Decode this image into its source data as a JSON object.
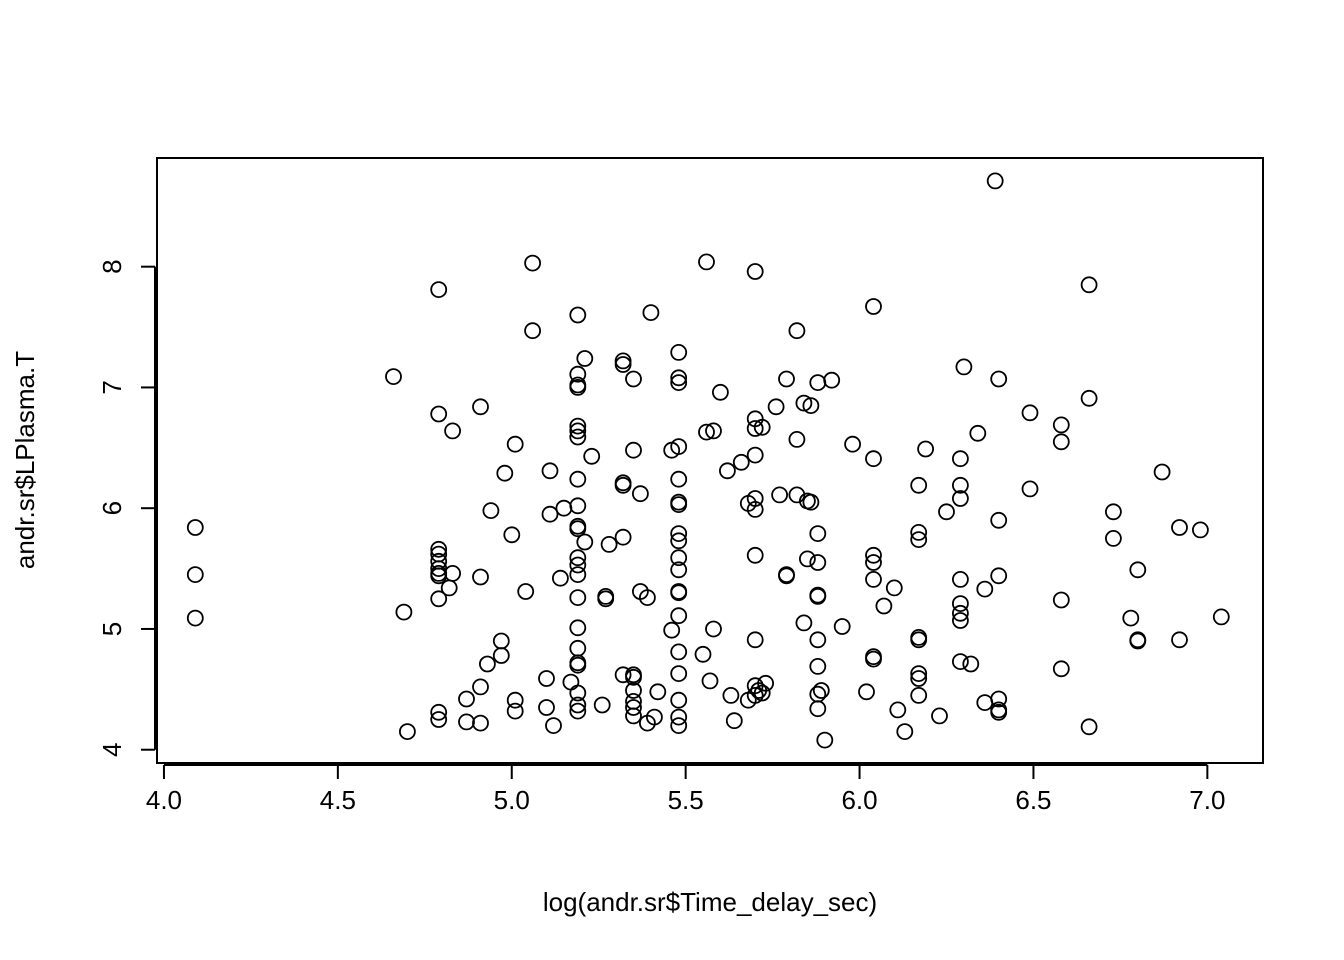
{
  "chart_data": {
    "type": "scatter",
    "title": "",
    "xlabel": "log(andr.sr$Time_delay_sec)",
    "ylabel": "andr.sr$LPlasma.T",
    "xlim": [
      3.98,
      7.16
    ],
    "ylim": [
      3.89,
      8.9
    ],
    "xticks": [
      4.0,
      4.5,
      5.0,
      5.5,
      6.0,
      6.5,
      7.0
    ],
    "xtick_labels": [
      "4.0",
      "4.5",
      "5.0",
      "5.5",
      "6.0",
      "6.5",
      "7.0"
    ],
    "yticks": [
      4,
      5,
      6,
      7,
      8
    ],
    "ytick_labels": [
      "4",
      "5",
      "6",
      "7",
      "8"
    ],
    "grid": false,
    "marker": "open-circle",
    "colors": {
      "points": "#000000",
      "axes": "#000000",
      "background": "#ffffff"
    },
    "points": [
      [
        4.09,
        5.84
      ],
      [
        4.09,
        5.45
      ],
      [
        4.09,
        5.09
      ],
      [
        4.66,
        7.09
      ],
      [
        4.69,
        5.14
      ],
      [
        4.7,
        4.15
      ],
      [
        4.79,
        7.81
      ],
      [
        4.79,
        6.78
      ],
      [
        4.79,
        5.66
      ],
      [
        4.79,
        5.62
      ],
      [
        4.79,
        5.56
      ],
      [
        4.79,
        5.5
      ],
      [
        4.79,
        5.46
      ],
      [
        4.79,
        5.44
      ],
      [
        4.79,
        5.25
      ],
      [
        4.79,
        4.31
      ],
      [
        4.79,
        4.25
      ],
      [
        4.83,
        6.64
      ],
      [
        4.82,
        5.34
      ],
      [
        4.83,
        5.46
      ],
      [
        4.87,
        4.42
      ],
      [
        4.87,
        4.23
      ],
      [
        4.91,
        6.84
      ],
      [
        4.91,
        5.43
      ],
      [
        4.91,
        4.52
      ],
      [
        4.91,
        4.22
      ],
      [
        4.93,
        4.71
      ],
      [
        4.94,
        5.98
      ],
      [
        4.97,
        4.9
      ],
      [
        4.97,
        4.78
      ],
      [
        4.98,
        6.29
      ],
      [
        5.0,
        5.78
      ],
      [
        5.01,
        6.53
      ],
      [
        5.01,
        4.41
      ],
      [
        5.01,
        4.32
      ],
      [
        5.04,
        5.31
      ],
      [
        5.06,
        8.03
      ],
      [
        5.06,
        7.47
      ],
      [
        5.1,
        4.59
      ],
      [
        5.1,
        4.35
      ],
      [
        5.11,
        6.31
      ],
      [
        5.11,
        5.95
      ],
      [
        5.12,
        4.2
      ],
      [
        5.14,
        5.42
      ],
      [
        5.15,
        6.0
      ],
      [
        5.17,
        4.56
      ],
      [
        5.19,
        7.6
      ],
      [
        5.19,
        7.11
      ],
      [
        5.19,
        7.02
      ],
      [
        5.19,
        7.0
      ],
      [
        5.19,
        6.68
      ],
      [
        5.19,
        6.64
      ],
      [
        5.19,
        6.59
      ],
      [
        5.19,
        6.24
      ],
      [
        5.19,
        6.02
      ],
      [
        5.19,
        5.85
      ],
      [
        5.19,
        5.83
      ],
      [
        5.19,
        5.59
      ],
      [
        5.19,
        5.53
      ],
      [
        5.19,
        5.45
      ],
      [
        5.19,
        5.26
      ],
      [
        5.19,
        5.01
      ],
      [
        5.19,
        4.84
      ],
      [
        5.19,
        4.72
      ],
      [
        5.19,
        4.7
      ],
      [
        5.19,
        4.47
      ],
      [
        5.19,
        4.37
      ],
      [
        5.19,
        4.32
      ],
      [
        5.21,
        7.24
      ],
      [
        5.21,
        5.72
      ],
      [
        5.23,
        6.43
      ],
      [
        5.26,
        4.37
      ],
      [
        5.27,
        5.27
      ],
      [
        5.27,
        5.25
      ],
      [
        5.28,
        5.7
      ],
      [
        5.32,
        7.22
      ],
      [
        5.32,
        7.19
      ],
      [
        5.32,
        6.21
      ],
      [
        5.32,
        6.19
      ],
      [
        5.32,
        5.76
      ],
      [
        5.32,
        4.62
      ],
      [
        5.35,
        7.07
      ],
      [
        5.35,
        6.48
      ],
      [
        5.35,
        4.62
      ],
      [
        5.35,
        4.6
      ],
      [
        5.35,
        4.49
      ],
      [
        5.35,
        4.4
      ],
      [
        5.35,
        4.35
      ],
      [
        5.35,
        4.28
      ],
      [
        5.37,
        6.12
      ],
      [
        5.37,
        5.31
      ],
      [
        5.39,
        5.26
      ],
      [
        5.39,
        4.22
      ],
      [
        5.4,
        7.62
      ],
      [
        5.41,
        4.27
      ],
      [
        5.42,
        4.48
      ],
      [
        5.46,
        6.48
      ],
      [
        5.46,
        4.99
      ],
      [
        5.48,
        7.29
      ],
      [
        5.48,
        7.08
      ],
      [
        5.48,
        7.04
      ],
      [
        5.48,
        6.51
      ],
      [
        5.48,
        6.24
      ],
      [
        5.48,
        6.05
      ],
      [
        5.48,
        6.03
      ],
      [
        5.48,
        5.79
      ],
      [
        5.48,
        5.73
      ],
      [
        5.48,
        5.59
      ],
      [
        5.48,
        5.49
      ],
      [
        5.48,
        5.31
      ],
      [
        5.48,
        5.3
      ],
      [
        5.48,
        5.11
      ],
      [
        5.48,
        4.81
      ],
      [
        5.48,
        4.63
      ],
      [
        5.48,
        4.41
      ],
      [
        5.48,
        4.27
      ],
      [
        5.48,
        4.2
      ],
      [
        5.55,
        4.79
      ],
      [
        5.56,
        8.04
      ],
      [
        5.56,
        6.63
      ],
      [
        5.57,
        4.57
      ],
      [
        5.58,
        6.64
      ],
      [
        5.58,
        5.0
      ],
      [
        5.6,
        6.96
      ],
      [
        5.62,
        6.31
      ],
      [
        5.63,
        4.45
      ],
      [
        5.64,
        4.24
      ],
      [
        5.66,
        6.38
      ],
      [
        5.68,
        6.04
      ],
      [
        5.68,
        4.41
      ],
      [
        5.7,
        7.96
      ],
      [
        5.7,
        6.74
      ],
      [
        5.7,
        6.66
      ],
      [
        5.7,
        6.44
      ],
      [
        5.7,
        6.08
      ],
      [
        5.7,
        5.99
      ],
      [
        5.7,
        5.61
      ],
      [
        5.7,
        4.91
      ],
      [
        5.7,
        4.53
      ],
      [
        5.7,
        4.45
      ],
      [
        5.71,
        4.49
      ],
      [
        5.72,
        6.67
      ],
      [
        5.72,
        4.47
      ],
      [
        5.73,
        4.55
      ],
      [
        5.76,
        6.84
      ],
      [
        5.77,
        6.11
      ],
      [
        5.79,
        7.07
      ],
      [
        5.79,
        5.45
      ],
      [
        5.79,
        5.44
      ],
      [
        5.82,
        7.47
      ],
      [
        5.82,
        6.57
      ],
      [
        5.82,
        6.11
      ],
      [
        5.84,
        6.87
      ],
      [
        5.84,
        5.05
      ],
      [
        5.85,
        6.06
      ],
      [
        5.85,
        5.58
      ],
      [
        5.86,
        6.05
      ],
      [
        5.86,
        6.85
      ],
      [
        5.88,
        7.04
      ],
      [
        5.88,
        5.79
      ],
      [
        5.88,
        5.55
      ],
      [
        5.88,
        5.28
      ],
      [
        5.88,
        5.27
      ],
      [
        5.88,
        4.91
      ],
      [
        5.88,
        4.69
      ],
      [
        5.88,
        4.46
      ],
      [
        5.88,
        4.34
      ],
      [
        5.89,
        4.49
      ],
      [
        5.9,
        4.08
      ],
      [
        5.92,
        7.06
      ],
      [
        5.95,
        5.02
      ],
      [
        5.98,
        6.53
      ],
      [
        6.02,
        4.48
      ],
      [
        6.04,
        7.67
      ],
      [
        6.04,
        6.41
      ],
      [
        6.04,
        5.61
      ],
      [
        6.04,
        5.55
      ],
      [
        6.04,
        5.41
      ],
      [
        6.04,
        4.77
      ],
      [
        6.04,
        4.75
      ],
      [
        6.07,
        5.19
      ],
      [
        6.1,
        5.34
      ],
      [
        6.11,
        4.33
      ],
      [
        6.13,
        4.15
      ],
      [
        6.17,
        6.19
      ],
      [
        6.17,
        5.8
      ],
      [
        6.17,
        5.74
      ],
      [
        6.17,
        4.93
      ],
      [
        6.17,
        4.91
      ],
      [
        6.17,
        4.63
      ],
      [
        6.17,
        4.59
      ],
      [
        6.17,
        4.45
      ],
      [
        6.19,
        6.49
      ],
      [
        6.23,
        4.28
      ],
      [
        6.25,
        5.97
      ],
      [
        6.29,
        6.41
      ],
      [
        6.29,
        6.19
      ],
      [
        6.29,
        6.08
      ],
      [
        6.29,
        5.41
      ],
      [
        6.29,
        5.21
      ],
      [
        6.29,
        5.13
      ],
      [
        6.29,
        5.07
      ],
      [
        6.29,
        4.73
      ],
      [
        6.3,
        7.17
      ],
      [
        6.32,
        4.71
      ],
      [
        6.34,
        6.62
      ],
      [
        6.36,
        5.33
      ],
      [
        6.36,
        4.39
      ],
      [
        6.39,
        8.71
      ],
      [
        6.4,
        7.07
      ],
      [
        6.4,
        5.9
      ],
      [
        6.4,
        5.44
      ],
      [
        6.4,
        4.42
      ],
      [
        6.4,
        4.33
      ],
      [
        6.4,
        4.31
      ],
      [
        6.49,
        6.79
      ],
      [
        6.49,
        6.16
      ],
      [
        6.58,
        6.69
      ],
      [
        6.58,
        6.55
      ],
      [
        6.58,
        5.24
      ],
      [
        6.58,
        4.67
      ],
      [
        6.66,
        7.85
      ],
      [
        6.66,
        6.91
      ],
      [
        6.66,
        4.19
      ],
      [
        6.73,
        5.97
      ],
      [
        6.73,
        5.75
      ],
      [
        6.78,
        5.09
      ],
      [
        6.8,
        5.49
      ],
      [
        6.8,
        4.91
      ],
      [
        6.8,
        4.9
      ],
      [
        6.87,
        6.3
      ],
      [
        6.92,
        5.84
      ],
      [
        6.92,
        4.91
      ],
      [
        6.98,
        5.82
      ],
      [
        7.04,
        5.1
      ]
    ]
  }
}
